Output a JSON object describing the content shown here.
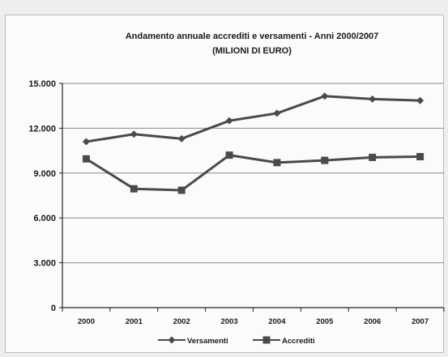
{
  "chart_data": {
    "type": "line",
    "title": "Andamento annuale accrediti e versamenti - Anni 2000/2007",
    "subtitle": "(MILIONI DI EURO)",
    "categories": [
      "2000",
      "2001",
      "2002",
      "2003",
      "2004",
      "2005",
      "2006",
      "2007"
    ],
    "series": [
      {
        "name": "Versamenti",
        "values": [
          11100,
          11600,
          11300,
          12500,
          13000,
          14150,
          13950,
          13850
        ],
        "color": "#4a4a4a",
        "marker": "diamond"
      },
      {
        "name": "Accrediti",
        "values": [
          9950,
          7950,
          7850,
          10200,
          9700,
          9850,
          10050,
          10100
        ],
        "color": "#4a4a4a",
        "marker": "square"
      }
    ],
    "ylim": [
      0,
      15000
    ],
    "yticks": [
      0,
      3000,
      6000,
      9000,
      12000,
      15000
    ],
    "ytick_labels": [
      "0",
      "3.000",
      "6.000",
      "9.000",
      "12.000",
      "15.000"
    ],
    "grid": true,
    "legend_position": "bottom",
    "xlabel": "",
    "ylabel": ""
  }
}
